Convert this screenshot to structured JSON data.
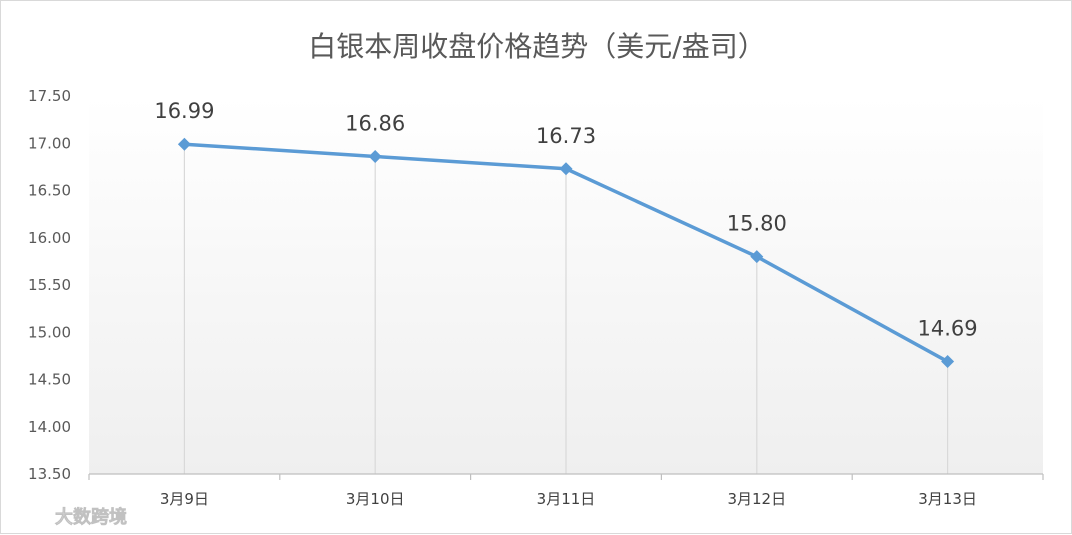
{
  "chart_data": {
    "type": "line",
    "title": "白银本周收盘价格趋势（美元/盎司）",
    "categories": [
      "3月9日",
      "3月10日",
      "3月11日",
      "3月12日",
      "3月13日"
    ],
    "series": [
      {
        "values": [
          16.99,
          16.86,
          16.73,
          15.8,
          14.69
        ]
      }
    ],
    "data_labels": [
      "16.99",
      "16.86",
      "16.73",
      "15.80",
      "14.69"
    ],
    "ylim": [
      13.5,
      17.5
    ],
    "yticks": [
      13.5,
      14.0,
      14.5,
      15.0,
      15.5,
      16.0,
      16.5,
      17.0,
      17.5
    ],
    "ytick_labels": [
      "13.50",
      "14.00",
      "14.50",
      "15.00",
      "15.50",
      "16.00",
      "16.50",
      "17.00",
      "17.50"
    ],
    "grid": "vertical drop lines",
    "legend": "none",
    "colors": {
      "line": "#5b9bd5",
      "marker": "#5b9bd5",
      "drop_line": "#d9d9d9",
      "axis": "#bfbfbf"
    }
  },
  "watermark": {
    "text": "大数跨境",
    "icon": "logo-swirl-icon"
  }
}
